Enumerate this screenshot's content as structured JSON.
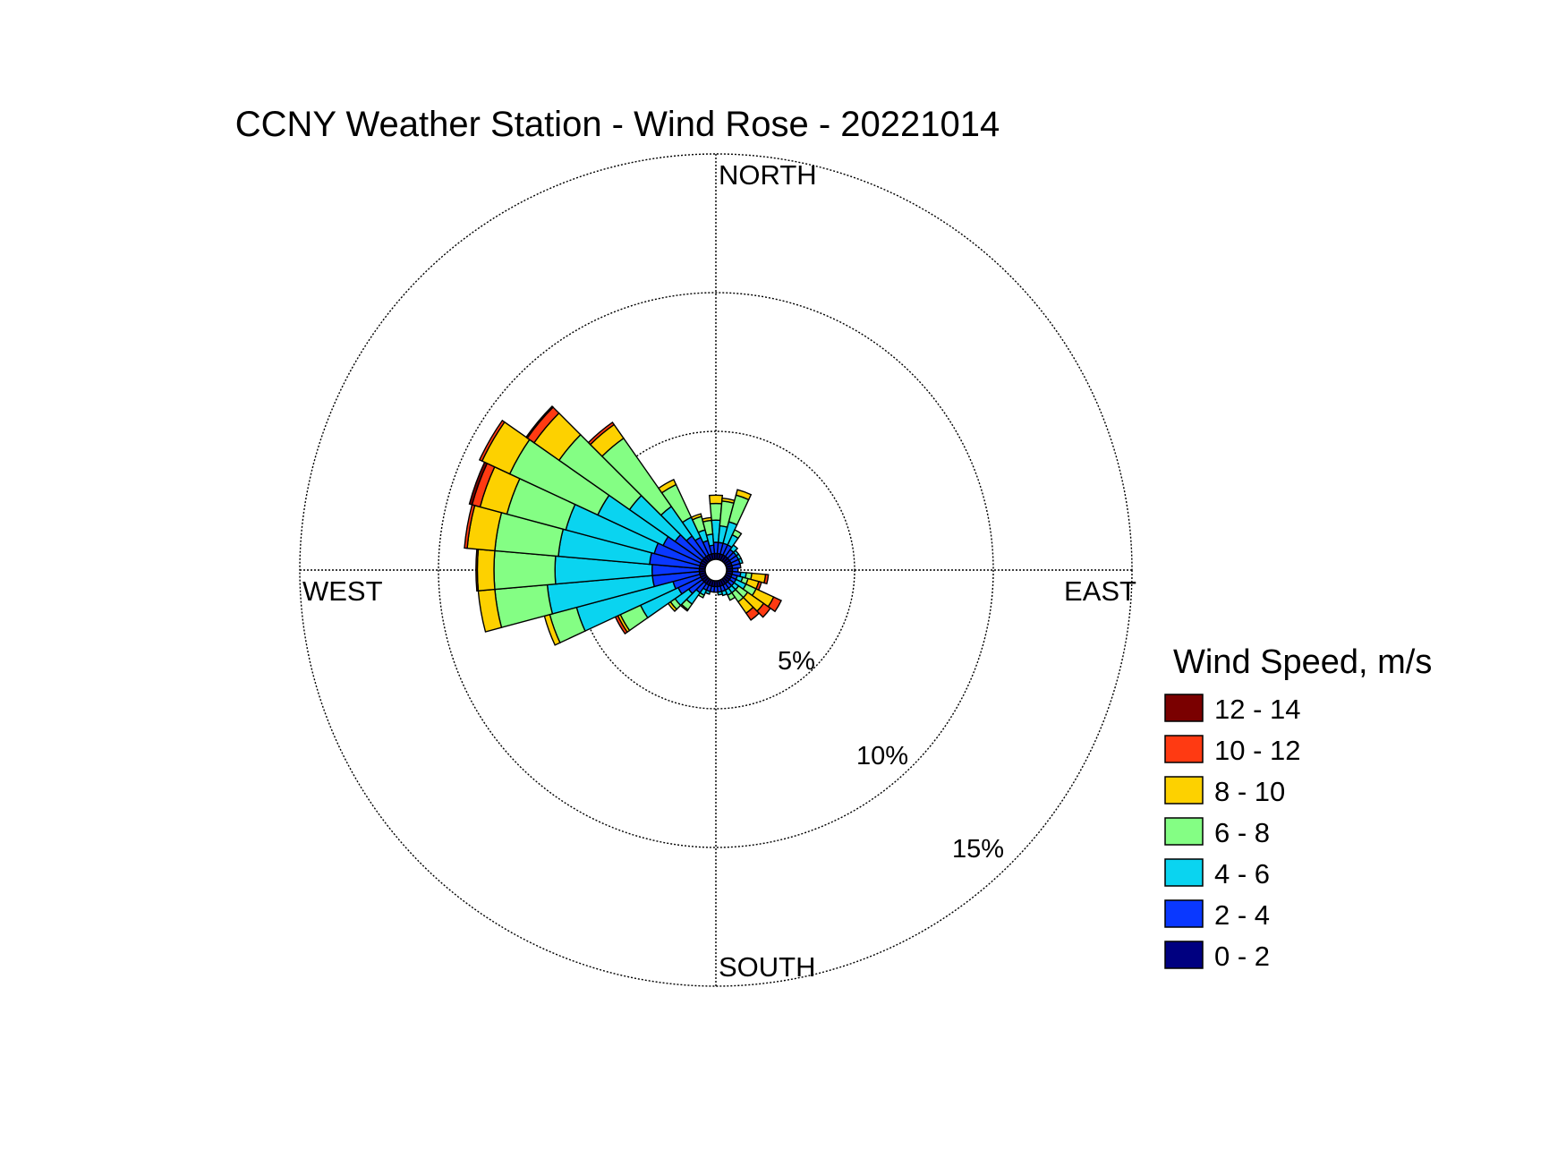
{
  "chart_data": {
    "type": "windrose",
    "title": "CCNY Weather Station - Wind Rose - 20221014",
    "direction_labels": {
      "north": "NORTH",
      "east": "EAST",
      "south": "SOUTH",
      "west": "WEST"
    },
    "rings": [
      5,
      10,
      15
    ],
    "ring_labels": [
      "5%",
      "10%",
      "15%"
    ],
    "ring_max": 15,
    "legend": {
      "title": "Wind Speed, m/s",
      "placement": "right"
    },
    "speed_bins": [
      {
        "label": "0 - 2",
        "color": "#000080"
      },
      {
        "label": "2 - 4",
        "color": "#0a38ff"
      },
      {
        "label": "4 - 6",
        "color": "#0ad4f0"
      },
      {
        "label": "6 - 8",
        "color": "#84fe84"
      },
      {
        "label": "8 - 10",
        "color": "#fdd100"
      },
      {
        "label": "10 - 12",
        "color": "#ff3a12"
      },
      {
        "label": "12 - 14",
        "color": "#7a0000"
      }
    ],
    "sector_width_deg": 10,
    "sector_unit": "cumulative % frequency per speed bin",
    "sectors": [
      {
        "dir": 0,
        "cum": [
          0.6,
          1.0,
          1.8,
          2.4,
          2.7
        ]
      },
      {
        "dir": 10,
        "cum": [
          0.6,
          1.0,
          1.6,
          2.5,
          2.6
        ]
      },
      {
        "dir": 20,
        "cum": [
          0.6,
          1.0,
          1.8,
          2.8,
          3.0
        ]
      },
      {
        "dir": 30,
        "cum": [
          0.6,
          1.0,
          1.4,
          1.6
        ]
      },
      {
        "dir": 40,
        "cum": [
          0.6,
          0.9,
          1.1
        ]
      },
      {
        "dir": 50,
        "cum": [
          0.6,
          0.9,
          1.0
        ]
      },
      {
        "dir": 60,
        "cum": [
          0.6,
          0.9,
          1.0
        ]
      },
      {
        "dir": 70,
        "cum": [
          0.6,
          0.9,
          1.0
        ]
      },
      {
        "dir": 80,
        "cum": [
          0.6,
          0.9
        ]
      },
      {
        "dir": 90,
        "cum": [
          0.6,
          0.8
        ]
      },
      {
        "dir": 100,
        "cum": [
          0.6,
          0.9,
          1.1,
          1.3,
          1.8,
          1.9
        ]
      },
      {
        "dir": 110,
        "cum": [
          0.6,
          0.8,
          1.0,
          1.2,
          1.6,
          1.7
        ]
      },
      {
        "dir": 120,
        "cum": [
          0.6,
          0.8,
          1.2,
          1.6,
          2.3,
          2.6
        ]
      },
      {
        "dir": 130,
        "cum": [
          0.6,
          0.8,
          1.0,
          1.4,
          2.1,
          2.4
        ]
      },
      {
        "dir": 140,
        "cum": [
          0.6,
          0.8,
          1.0,
          1.4,
          1.9,
          2.2
        ]
      },
      {
        "dir": 150,
        "cum": [
          0.6,
          0.8,
          1.0,
          1.2
        ]
      },
      {
        "dir": 160,
        "cum": [
          0.6,
          0.8,
          0.95
        ]
      },
      {
        "dir": 170,
        "cum": [
          0.6,
          0.8,
          0.9
        ]
      },
      {
        "dir": 180,
        "cum": [
          0.6,
          0.8
        ]
      },
      {
        "dir": 190,
        "cum": [
          0.6,
          0.8
        ]
      },
      {
        "dir": 200,
        "cum": [
          0.6,
          0.8,
          0.9
        ]
      },
      {
        "dir": 210,
        "cum": [
          0.6,
          0.8,
          1.0,
          1.1
        ]
      },
      {
        "dir": 220,
        "cum": [
          0.6,
          1.0,
          1.5,
          1.75,
          1.8
        ]
      },
      {
        "dir": 230,
        "cum": [
          0.6,
          1.2,
          1.8,
          2.0,
          2.1
        ]
      },
      {
        "dir": 240,
        "cum": [
          0.6,
          1.5,
          3.0,
          3.8,
          3.9,
          4.0
        ]
      },
      {
        "dir": 250,
        "cum": [
          0.6,
          1.6,
          5.2,
          6.2,
          6.4
        ]
      },
      {
        "dir": 260,
        "cum": [
          0.6,
          2.3,
          6.1,
          8.0,
          8.6
        ]
      },
      {
        "dir": 270,
        "cum": [
          0.6,
          2.3,
          5.8,
          8.0,
          8.6,
          8.65
        ]
      },
      {
        "dir": 280,
        "cum": [
          0.6,
          2.4,
          5.7,
          8.0,
          9.0,
          9.1
        ]
      },
      {
        "dir": 290,
        "cum": [
          0.6,
          2.3,
          5.6,
          7.8,
          8.8,
          9.1,
          9.2
        ]
      },
      {
        "dir": 300,
        "cum": [
          0.6,
          2.1,
          4.7,
          8.2,
          9.3,
          9.4
        ]
      },
      {
        "dir": 310,
        "cum": [
          0.6,
          1.8,
          3.8,
          6.9,
          8.0,
          8.3,
          8.35
        ]
      },
      {
        "dir": 320,
        "cum": [
          0.6,
          1.5,
          2.8,
          5.8,
          6.4,
          6.5
        ]
      },
      {
        "dir": 330,
        "cum": [
          0.6,
          1.3,
          2.1,
          3.4,
          3.6
        ]
      },
      {
        "dir": 340,
        "cum": [
          0.6,
          1.1,
          1.5,
          2.0,
          2.1
        ]
      },
      {
        "dir": 350,
        "cum": [
          0.6,
          0.9,
          1.3,
          1.8,
          1.9
        ]
      }
    ]
  }
}
